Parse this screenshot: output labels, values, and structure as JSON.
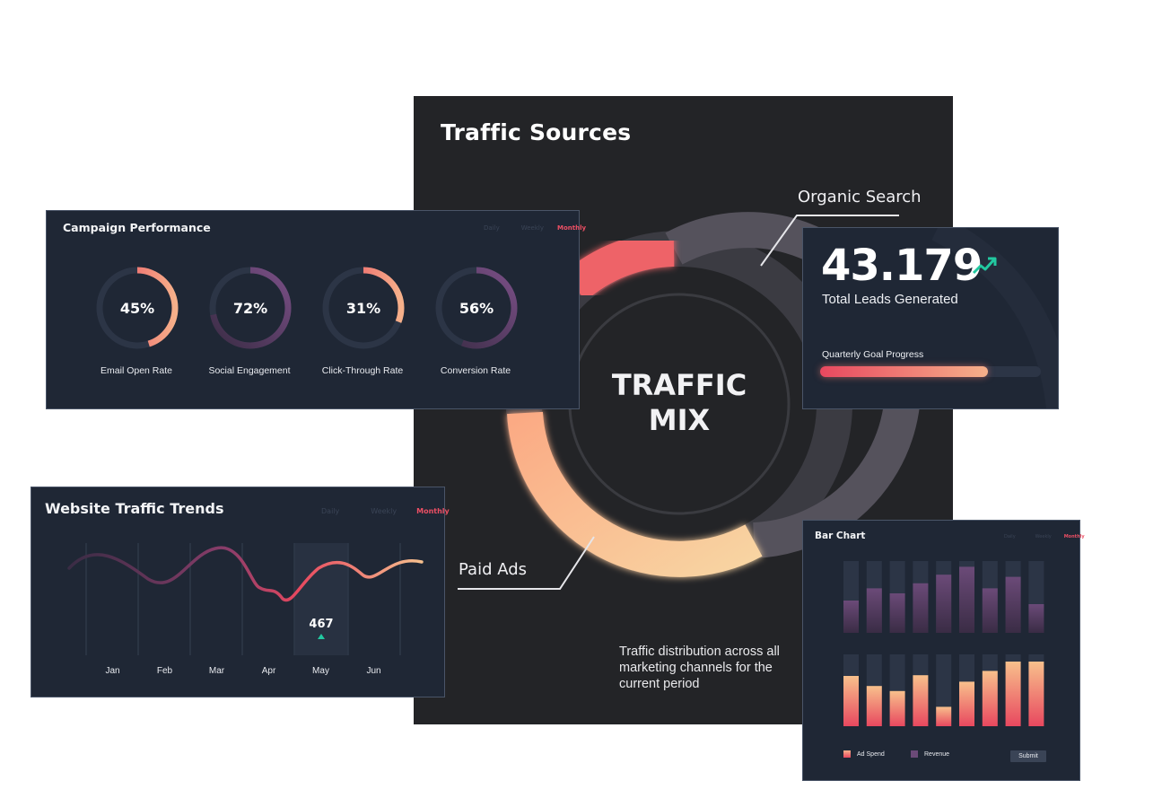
{
  "traffic_sources": {
    "title": "Traffic Sources",
    "center_line1": "TRAFFIC",
    "center_line2": "MIX",
    "callout_top": "Organic Search",
    "callout_bottom": "Paid Ads",
    "description": "Traffic distribution across all marketing channels for the current period"
  },
  "campaign": {
    "title": "Campaign Performance",
    "segments": [
      "Daily",
      "Weekly",
      "Monthly"
    ],
    "active_segment": "Monthly",
    "gauges": [
      {
        "value": "45%",
        "fraction": 0.45,
        "label": "Email Open Rate",
        "style": "warm"
      },
      {
        "value": "72%",
        "fraction": 0.72,
        "label": "Social Engagement",
        "style": "purple"
      },
      {
        "value": "31%",
        "fraction": 0.31,
        "label": "Click-Through Rate",
        "style": "warm"
      },
      {
        "value": "56%",
        "fraction": 0.56,
        "label": "Conversion Rate",
        "style": "purple"
      }
    ]
  },
  "leads": {
    "value": "43.179",
    "label": "Total Leads Generated",
    "trend_icon": "trending-up-icon",
    "goal_label": "Quarterly Goal Progress",
    "goal_progress": 0.76
  },
  "trends": {
    "title": "Website Traffic Trends",
    "segments": [
      "Daily",
      "Weekly",
      "Monthly"
    ],
    "active_segment": "Monthly",
    "months": [
      "Jan",
      "Feb",
      "Mar",
      "Apr",
      "May",
      "Jun"
    ],
    "highlight_month": "May",
    "highlight_value": "467",
    "highlight_icon": "triangle-up-icon"
  },
  "bar_chart": {
    "title": "Bar Chart",
    "segments": [
      "Daily",
      "Weekly",
      "Monthly"
    ],
    "active_segment": "Monthly",
    "legend": [
      "Ad Spend",
      "Revenue"
    ],
    "submit_label": "Submit",
    "colors": {
      "ad_spend": "#f4a07a",
      "revenue": "#6b4a78",
      "accent": "#ec4f64"
    }
  },
  "chart_data": [
    {
      "type": "line",
      "categories": [
        "Jan",
        "Feb",
        "Mar",
        "Apr",
        "May",
        "Jun"
      ],
      "annotation": {
        "category": "May",
        "value": 467
      }
    },
    {
      "type": "bar",
      "series": [
        {
          "name": "Revenue",
          "values": [
            0.45,
            0.62,
            0.55,
            0.69,
            0.81,
            0.92,
            0.62,
            0.78,
            0.4
          ]
        },
        {
          "name": "Ad Spend",
          "values": [
            0.7,
            0.56,
            0.49,
            0.71,
            0.27,
            0.62,
            0.77,
            0.9,
            0.9
          ]
        }
      ]
    }
  ]
}
